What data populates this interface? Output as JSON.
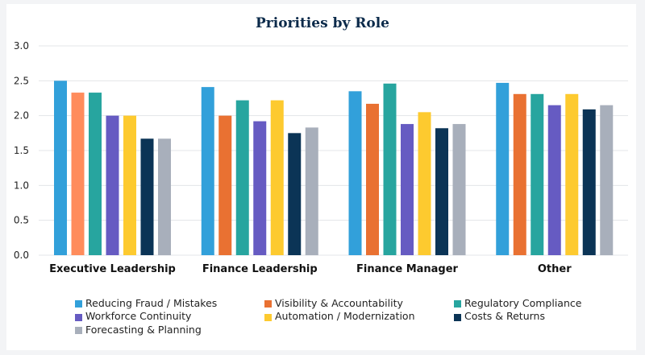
{
  "chart_data": {
    "type": "bar",
    "title": "Priorities by Role",
    "xlabel": "",
    "ylabel": "",
    "ylim": [
      0,
      3.0
    ],
    "yticks": [
      "0.0",
      "0.5",
      "1.0",
      "1.5",
      "2.0",
      "2.5",
      "3.0"
    ],
    "grid": true,
    "legend_position": "bottom",
    "categories": [
      "Executive Leadership",
      "Finance Leadership",
      "Finance Manager",
      "Other"
    ],
    "series": [
      {
        "name": "Reducing Fraud / Mistakes",
        "color": "#32a0da",
        "values": [
          2.5,
          2.41,
          2.35,
          2.47
        ]
      },
      {
        "name": "Visibility & Accountability",
        "color": "#e97132",
        "values": [
          2.33,
          2.0,
          2.17,
          2.31
        ]
      },
      {
        "name": "Regulatory Compliance",
        "color": "#27a59f",
        "values": [
          2.33,
          2.22,
          2.46,
          2.31
        ]
      },
      {
        "name": "Workforce Continuity",
        "color": "#665bc2",
        "values": [
          2.0,
          1.92,
          1.88,
          2.15
        ]
      },
      {
        "name": "Automation / Modernization",
        "color": "#fdca2f",
        "values": [
          2.0,
          2.22,
          2.05,
          2.31
        ]
      },
      {
        "name": "Costs & Returns",
        "color": "#0b3456",
        "values": [
          1.67,
          1.75,
          1.82,
          2.09
        ]
      },
      {
        "name": "Forecasting & Planning",
        "color": "#a8afbb",
        "values": [
          1.67,
          1.83,
          1.88,
          2.15
        ]
      }
    ],
    "highlighted_bar_color": "#ff8c5c"
  }
}
